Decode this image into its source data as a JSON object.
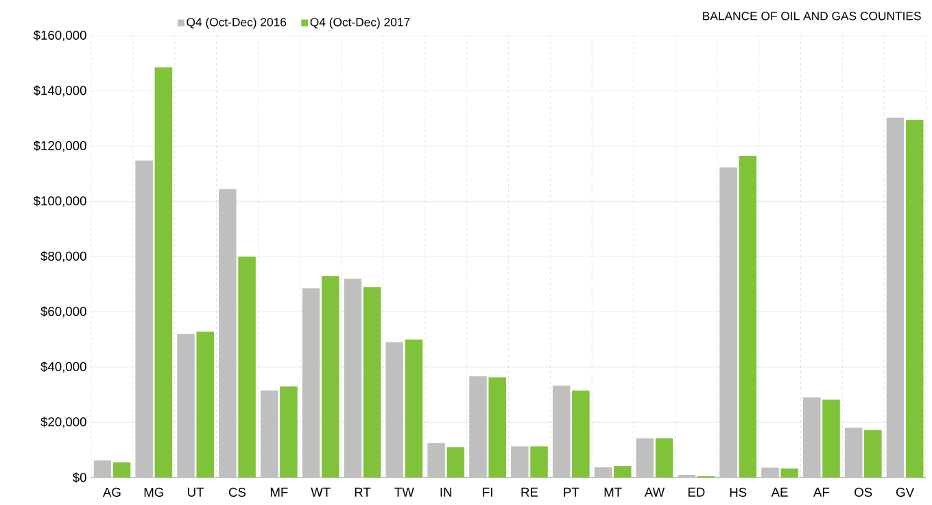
{
  "chart_data": {
    "type": "bar",
    "title": "BALANCE OF OIL AND GAS COUNTIES",
    "categories": [
      "AG",
      "MG",
      "UT",
      "CS",
      "MF",
      "WT",
      "RT",
      "TW",
      "IN",
      "FI",
      "RE",
      "PT",
      "MT",
      "AW",
      "ED",
      "HS",
      "AE",
      "AF",
      "OS",
      "GV"
    ],
    "series": [
      {
        "name": "Q4 (Oct-Dec) 2016",
        "color": "#bfbfbf",
        "values": [
          6200,
          114800,
          52000,
          104500,
          31500,
          68500,
          72000,
          49000,
          12500,
          36700,
          11300,
          33300,
          3700,
          14200,
          1000,
          112300,
          3600,
          29000,
          18000,
          130300
        ]
      },
      {
        "name": "Q4 (Oct-Dec) 2017",
        "color": "#80c33a",
        "values": [
          5500,
          148500,
          52800,
          80000,
          33000,
          73000,
          69000,
          50000,
          11000,
          36300,
          11300,
          31500,
          4200,
          14200,
          500,
          116500,
          3300,
          28200,
          17200,
          129500
        ]
      }
    ],
    "ylim": [
      0,
      160000
    ],
    "yticks": [
      {
        "value": 0,
        "label": "$0"
      },
      {
        "value": 20000,
        "label": "$20,000"
      },
      {
        "value": 40000,
        "label": "$40,000"
      },
      {
        "value": 60000,
        "label": "$60,000"
      },
      {
        "value": 80000,
        "label": "$80,000"
      },
      {
        "value": 100000,
        "label": "$100,000"
      },
      {
        "value": 120000,
        "label": "$120,000"
      },
      {
        "value": 140000,
        "label": "$140,000"
      },
      {
        "value": 160000,
        "label": "$160,000"
      }
    ],
    "grid": true,
    "legend": "top left"
  }
}
